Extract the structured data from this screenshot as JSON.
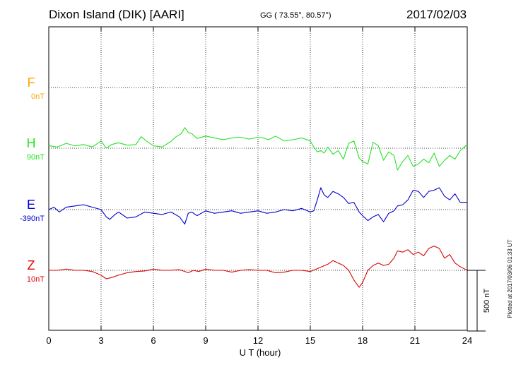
{
  "header": {
    "station": "Dixon Island (DIK)  [AARI]",
    "coords": "GG ( 73.55°,  80.57°)",
    "date": "2017/02/03"
  },
  "colors": {
    "F": "#ffa500",
    "H": "#22e322",
    "E": "#0000cc",
    "Z": "#dd0000",
    "axis": "#000000",
    "grid": "#000000"
  },
  "chart_data": {
    "type": "line",
    "xlabel": "U T (hour)",
    "xlim": [
      0,
      24
    ],
    "xticks": [
      "0",
      "3",
      "6",
      "9",
      "12",
      "15",
      "18",
      "21",
      "24"
    ],
    "grid": true,
    "scale_bar": "500 nT",
    "plotted_note": "Plotted at 2017/03/06 01:33 UT",
    "series": [
      {
        "name": "F",
        "baseline": "0nT",
        "x": [],
        "y": []
      },
      {
        "name": "H",
        "baseline": "90nT",
        "x": [
          0,
          0.5,
          1,
          1.5,
          2,
          2.5,
          3,
          3.3,
          3.6,
          4,
          4.5,
          5,
          5.3,
          5.6,
          6,
          6.5,
          7,
          7.3,
          7.6,
          7.8,
          8,
          8.2,
          8.5,
          9,
          9.5,
          10,
          10.5,
          11,
          11.5,
          12,
          12.3,
          12.6,
          13,
          13.5,
          14,
          14.5,
          15,
          15.2,
          15.4,
          15.6,
          15.8,
          16,
          16.3,
          16.6,
          16.9,
          17.2,
          17.5,
          17.8,
          18,
          18.3,
          18.6,
          18.9,
          19.2,
          19.5,
          19.8,
          20,
          20.3,
          20.6,
          20.9,
          21.2,
          21.5,
          21.8,
          22.1,
          22.4,
          22.7,
          23,
          23.3,
          23.6,
          24
        ],
        "y": [
          20,
          10,
          40,
          20,
          30,
          10,
          60,
          0,
          30,
          45,
          25,
          30,
          95,
          60,
          20,
          10,
          55,
          95,
          120,
          170,
          130,
          120,
          80,
          100,
          85,
          70,
          85,
          90,
          75,
          90,
          85,
          70,
          100,
          60,
          70,
          85,
          60,
          10,
          -30,
          -20,
          -40,
          10,
          -50,
          -20,
          -90,
          40,
          60,
          -80,
          -110,
          -130,
          50,
          20,
          -100,
          -30,
          -60,
          -180,
          -110,
          -60,
          -150,
          -130,
          -90,
          -120,
          -40,
          -150,
          -100,
          -60,
          -90,
          -20,
          30
        ]
      },
      {
        "name": "E",
        "baseline": "-390nT",
        "x": [
          0,
          0.3,
          0.6,
          1,
          1.5,
          2,
          2.5,
          3,
          3.3,
          3.5,
          3.8,
          4,
          4.5,
          5,
          5.5,
          6,
          6.5,
          7,
          7.5,
          7.8,
          8,
          8.2,
          8.5,
          9,
          9.5,
          10,
          10.5,
          11,
          11.5,
          12,
          12.5,
          13,
          13.5,
          14,
          14.5,
          15,
          15.2,
          15.4,
          15.6,
          15.8,
          16,
          16.3,
          16.6,
          16.9,
          17.2,
          17.5,
          17.8,
          18,
          18.3,
          18.6,
          18.9,
          19.2,
          19.5,
          19.8,
          20,
          20.3,
          20.6,
          20.9,
          21.2,
          21.5,
          21.8,
          22.1,
          22.4,
          22.7,
          23,
          23.3,
          23.6,
          24
        ],
        "y": [
          0,
          20,
          -20,
          20,
          30,
          40,
          20,
          0,
          -60,
          -80,
          -40,
          -20,
          -70,
          -60,
          -20,
          -30,
          -40,
          -20,
          -60,
          -120,
          -30,
          -20,
          -50,
          -10,
          -30,
          -20,
          -10,
          -30,
          -20,
          -10,
          -30,
          -20,
          0,
          -10,
          10,
          -20,
          -10,
          80,
          180,
          120,
          100,
          150,
          130,
          100,
          50,
          60,
          -20,
          -50,
          -90,
          -60,
          -40,
          -100,
          -30,
          -10,
          30,
          40,
          80,
          160,
          150,
          100,
          150,
          160,
          180,
          110,
          80,
          130,
          60,
          60
        ]
      },
      {
        "name": "Z",
        "baseline": "10nT",
        "x": [
          0,
          0.5,
          1,
          1.5,
          2,
          2.5,
          3,
          3.3,
          3.6,
          4,
          4.5,
          5,
          5.5,
          6,
          6.5,
          7,
          7.5,
          8,
          8.3,
          8.6,
          9,
          9.5,
          10,
          10.5,
          11,
          11.5,
          12,
          12.5,
          13,
          13.5,
          14,
          14.5,
          15,
          15.5,
          16,
          16.3,
          16.6,
          16.9,
          17.2,
          17.5,
          17.8,
          18,
          18.3,
          18.6,
          18.9,
          19.2,
          19.5,
          19.8,
          20,
          20.3,
          20.6,
          20.9,
          21.2,
          21.5,
          21.8,
          22.1,
          22.4,
          22.7,
          23,
          23.3,
          23.6,
          24
        ],
        "y": [
          0,
          0,
          10,
          0,
          0,
          -10,
          -40,
          -70,
          -60,
          -40,
          -20,
          -10,
          -5,
          10,
          0,
          0,
          5,
          -20,
          0,
          -10,
          10,
          0,
          0,
          -15,
          0,
          5,
          0,
          0,
          -20,
          -15,
          0,
          0,
          -10,
          20,
          50,
          80,
          60,
          40,
          0,
          -80,
          -140,
          -100,
          0,
          40,
          60,
          40,
          50,
          100,
          160,
          150,
          170,
          130,
          150,
          120,
          180,
          200,
          180,
          100,
          130,
          60,
          30,
          0
        ]
      }
    ]
  }
}
